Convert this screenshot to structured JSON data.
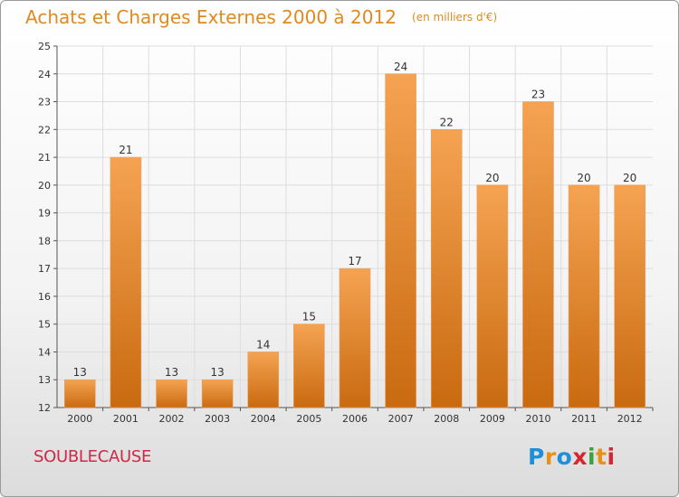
{
  "header": {
    "title": "Achats et Charges Externes 2000 à 2012",
    "unit": "(en milliers d'€)"
  },
  "footer": {
    "commune": "SOUBLECAUSE",
    "logo": [
      "P",
      "r",
      "o",
      "x",
      "i",
      "t",
      "i"
    ],
    "logo_colors": [
      "#1f8fd8",
      "#e6911c",
      "#1f8fd8",
      "#d7262f",
      "#3aa43a",
      "#e6911c",
      "#d7262f"
    ]
  },
  "colors": {
    "bar_top": "#f5a352",
    "bar_bottom": "#c96a10",
    "title": "#e0891f",
    "commune": "#cc2a48"
  },
  "chart_data": {
    "type": "bar",
    "title": "Achats et Charges Externes 2000 à 2012",
    "subtitle": "(en milliers d'€)",
    "categories": [
      "2000",
      "2001",
      "2002",
      "2003",
      "2004",
      "2005",
      "2006",
      "2007",
      "2008",
      "2009",
      "2010",
      "2011",
      "2012"
    ],
    "values": [
      13,
      21,
      13,
      13,
      14,
      15,
      17,
      24,
      22,
      20,
      23,
      20,
      20
    ],
    "ylim": [
      12,
      25
    ],
    "yticks": [
      12,
      13,
      14,
      15,
      16,
      17,
      18,
      19,
      20,
      21,
      22,
      23,
      24,
      25
    ],
    "grid": true,
    "legend": "none"
  }
}
